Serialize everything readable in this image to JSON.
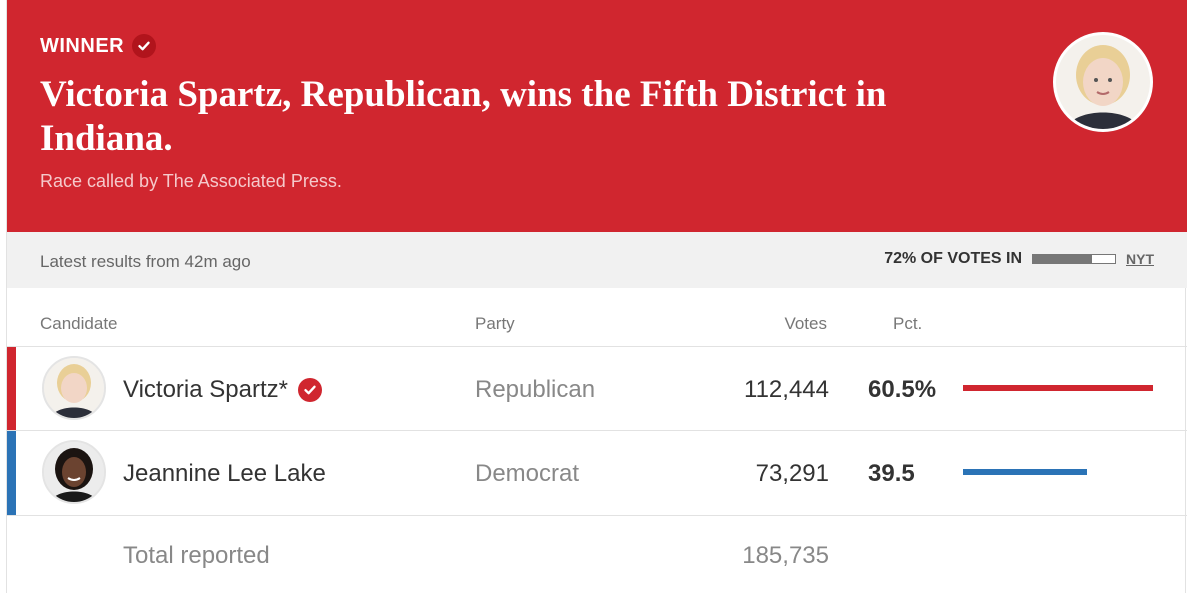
{
  "banner": {
    "winner_label": "WINNER",
    "headline": "Victoria Spartz, Republican, wins the Fifth District in Indiana.",
    "subhead": "Race called by The Associated Press.",
    "color": "#d0262f"
  },
  "status": {
    "latest": "Latest results from 42m ago",
    "votes_in_label": "72% OF VOTES IN",
    "votes_in_fraction": 0.72,
    "source_link": "NYT"
  },
  "table": {
    "headers": {
      "candidate": "Candidate",
      "party": "Party",
      "votes": "Votes",
      "pct": "Pct."
    },
    "rows": [
      {
        "name": "Victoria Spartz*",
        "winner": true,
        "party": "Republican",
        "votes": "112,444",
        "pct": "60.5%",
        "pct_value": 60.5,
        "color": "#d0262f"
      },
      {
        "name": "Jeannine Lee Lake",
        "winner": false,
        "party": "Democrat",
        "votes": "73,291",
        "pct": "39.5",
        "pct_value": 39.5,
        "color": "#2b73b6"
      }
    ],
    "total": {
      "label": "Total reported",
      "votes": "185,735"
    }
  },
  "icons": {
    "winner_check": "check-circle-icon",
    "candidate_photo": "avatar"
  }
}
